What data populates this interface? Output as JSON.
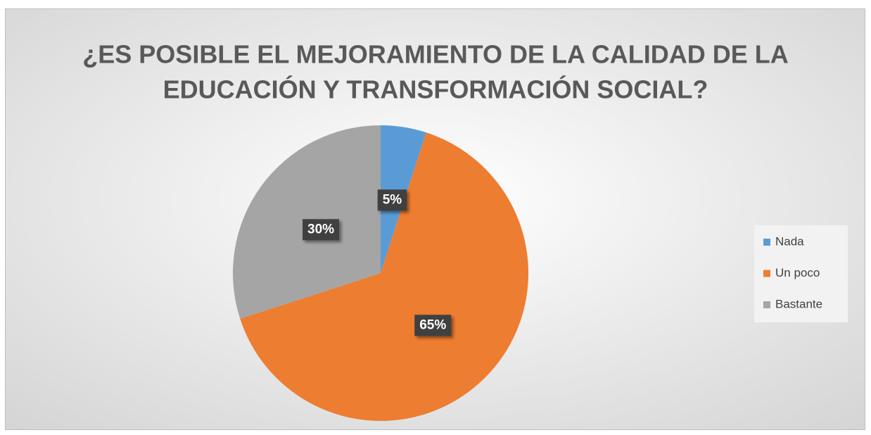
{
  "chart_data": {
    "type": "pie",
    "title": [
      "¿ES POSIBLE EL MEJORAMIENTO DE LA CALIDAD DE LA",
      "EDUCACIÓN Y TRANSFORMACIÓN SOCIAL?"
    ],
    "categories": [
      "Nada",
      "Un poco",
      "Bastante"
    ],
    "values": [
      5,
      65,
      30
    ],
    "value_labels": [
      "5%",
      "65%",
      "30%"
    ],
    "colors": [
      "#5b9bd5",
      "#ed7d31",
      "#a5a5a5"
    ],
    "legend": "right"
  }
}
